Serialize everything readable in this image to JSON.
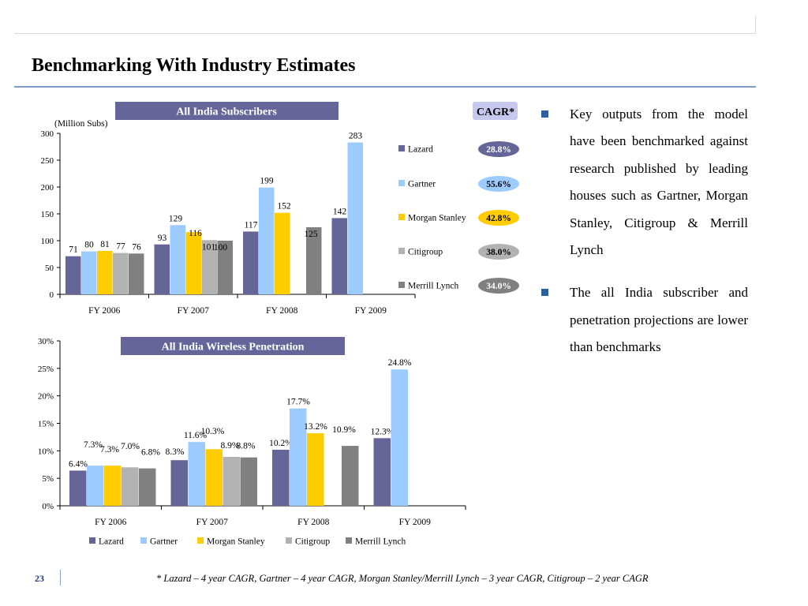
{
  "page": {
    "title": "Benchmarking With Industry Estimates",
    "page_number": "23",
    "footnote": "* Lazard – 4 year CAGR, Gartner – 4 year CAGR, Morgan Stanley/Merrill Lynch – 3 year CAGR, Citigroup – 2 year CAGR"
  },
  "bullets": [
    {
      "text": "Key outputs from the model have been benchmarked against research published by leading houses such as Gartner, Morgan Stanley, Citigroup & Merrill Lynch"
    },
    {
      "text": "The all India subscriber and penetration projections are lower than benchmarks"
    }
  ],
  "colors": {
    "Lazard": "#656598",
    "Gartner": "#9cccff",
    "Morgan Stanley": "#ffcc00",
    "Citigroup": "#b2b2b2",
    "Merrill Lynch": "#808080",
    "banner": "#65659a",
    "cagr_badge": "#c8c8ee"
  },
  "chart_data": [
    {
      "type": "bar",
      "title": "All India Subscribers",
      "ylabel": "(Million Subs)",
      "categories": [
        "FY 2006",
        "FY 2007",
        "FY 2008",
        "FY 2009"
      ],
      "ylim": [
        0,
        300
      ],
      "yticks": [
        "0",
        "50",
        "100",
        "150",
        "200",
        "250",
        "300"
      ],
      "series": [
        {
          "name": "Lazard",
          "values": [
            71,
            93,
            117,
            142
          ],
          "labels": [
            "71",
            "93",
            "117",
            "142"
          ]
        },
        {
          "name": "Gartner",
          "values": [
            80,
            129,
            199,
            283
          ],
          "labels": [
            "80",
            "129",
            "199",
            "283"
          ]
        },
        {
          "name": "Morgan Stanley",
          "values": [
            81,
            116,
            152,
            null
          ],
          "labels": [
            "81",
            "116",
            "152",
            ""
          ]
        },
        {
          "name": "Citigroup",
          "values": [
            77,
            101,
            null,
            null
          ],
          "labels": [
            "77",
            "101",
            "",
            ""
          ]
        },
        {
          "name": "Merrill Lynch",
          "values": [
            76,
            100,
            125,
            null
          ],
          "labels": [
            "76",
            "100",
            "125",
            ""
          ]
        }
      ],
      "legend": {
        "position": "right"
      },
      "cagr_header": "CAGR*",
      "cagr": [
        "28.8%",
        "55.6%",
        "42.8%",
        "38.0%",
        "34.0%"
      ],
      "grid": false
    },
    {
      "type": "bar",
      "title": "All India Wireless Penetration",
      "categories": [
        "FY 2006",
        "FY 2007",
        "FY 2008",
        "FY 2009"
      ],
      "ylim": [
        0,
        30
      ],
      "yticks": [
        "0%",
        "5%",
        "10%",
        "15%",
        "20%",
        "25%",
        "30%"
      ],
      "series": [
        {
          "name": "Lazard",
          "values": [
            6.4,
            8.3,
            10.2,
            12.3
          ],
          "labels": [
            "6.4%",
            "8.3%",
            "10.2%",
            "12.3%"
          ]
        },
        {
          "name": "Gartner",
          "values": [
            7.3,
            11.6,
            17.7,
            24.8
          ],
          "labels": [
            "7.3%",
            "11.6%",
            "17.7%",
            "24.8%"
          ]
        },
        {
          "name": "Morgan Stanley",
          "values": [
            7.3,
            10.3,
            13.2,
            null
          ],
          "labels": [
            "7.3%",
            "10.3%",
            "13.2%",
            ""
          ]
        },
        {
          "name": "Citigroup",
          "values": [
            7.0,
            8.9,
            null,
            null
          ],
          "labels": [
            "7.0%",
            "8.9%",
            "",
            ""
          ]
        },
        {
          "name": "Merrill Lynch",
          "values": [
            6.8,
            8.8,
            10.9,
            null
          ],
          "labels": [
            "6.8%",
            "8.8%",
            "10.9%",
            ""
          ]
        }
      ],
      "legend": {
        "position": "bottom"
      },
      "grid": false
    }
  ]
}
